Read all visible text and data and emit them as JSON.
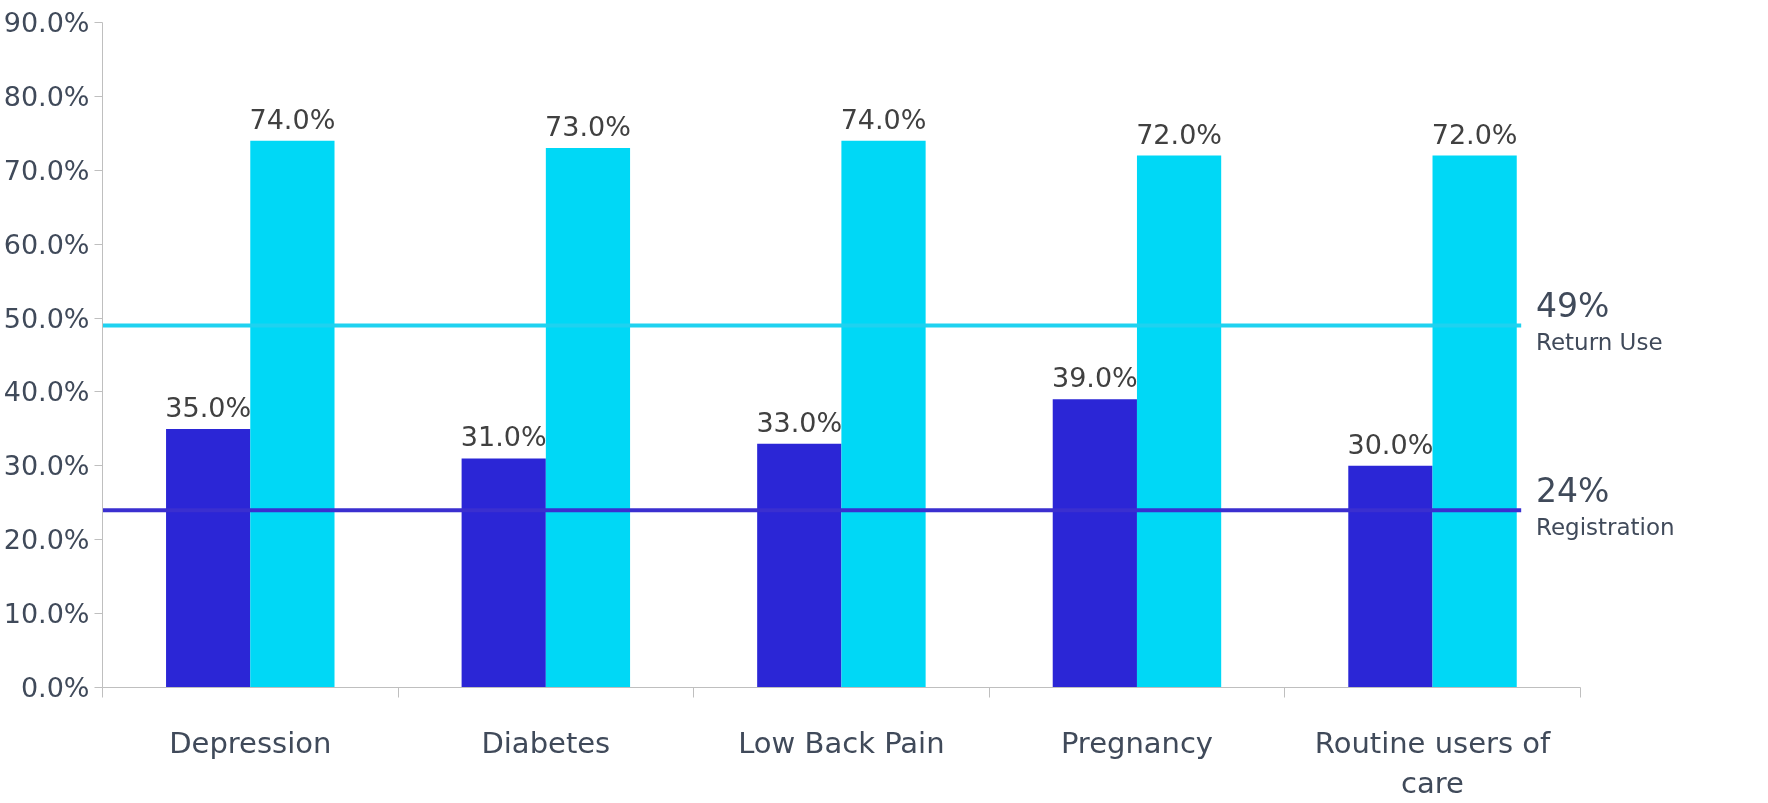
{
  "chart_data": {
    "type": "bar",
    "categories": [
      "Depression",
      "Diabetes",
      "Low Back Pain",
      "Pregnancy",
      "Routine users of care"
    ],
    "series": [
      {
        "color": "#2b26d6",
        "values": [
          35,
          31,
          33,
          39,
          30
        ],
        "value_labels": [
          "35.0%",
          "31.0%",
          "33.0%",
          "39.0%",
          "30.0%"
        ]
      },
      {
        "color": "#00d8f6",
        "values": [
          74,
          73,
          74,
          72,
          72
        ],
        "value_labels": [
          "74.0%",
          "73.0%",
          "74.0%",
          "72.0%",
          "72.0%"
        ]
      }
    ],
    "ylim": [
      0,
      90
    ],
    "yticks": [
      {
        "value": 0,
        "label": "0.0%"
      },
      {
        "value": 10,
        "label": "10.0%"
      },
      {
        "value": 20,
        "label": "20.0%"
      },
      {
        "value": 30,
        "label": "30.0%"
      },
      {
        "value": 40,
        "label": "40.0%"
      },
      {
        "value": 50,
        "label": "50.0%"
      },
      {
        "value": 60,
        "label": "60.0%"
      },
      {
        "value": 70,
        "label": "70.0%"
      },
      {
        "value": 80,
        "label": "80.0%"
      },
      {
        "value": 90,
        "label": "90.0%"
      }
    ],
    "ref_lines": [
      {
        "axis": "y",
        "value": 49,
        "label": "49%\nReturn Use",
        "color": "#1fd2f0"
      },
      {
        "axis": "y",
        "value": 24,
        "label": "24%\nRegistration",
        "color": "#3a2fd0"
      }
    ],
    "grid": false
  }
}
